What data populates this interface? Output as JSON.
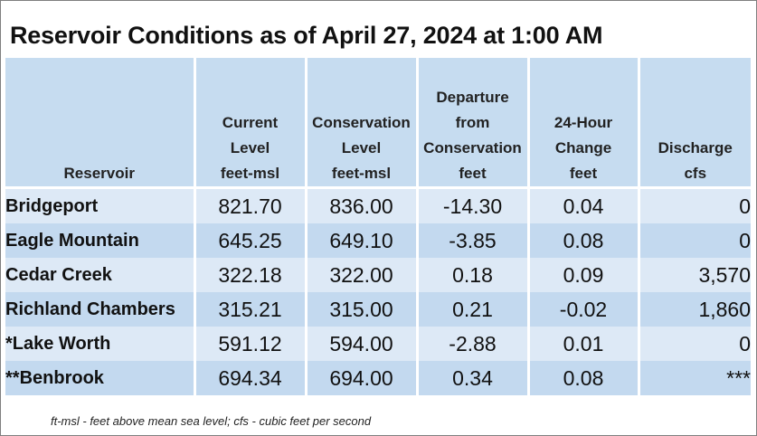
{
  "title": "Reservoir Conditions as of April 27, 2024 at 1:00 AM",
  "columns": [
    {
      "lines": [
        "Reservoir"
      ]
    },
    {
      "lines": [
        "Current",
        "Level",
        "feet-msl"
      ]
    },
    {
      "lines": [
        "Conservation",
        "Level",
        "feet-msl"
      ]
    },
    {
      "lines": [
        "Departure",
        "from",
        "Conservation",
        "feet"
      ]
    },
    {
      "lines": [
        "24-Hour",
        "Change",
        "feet"
      ]
    },
    {
      "lines": [
        "Discharge",
        "cfs"
      ]
    }
  ],
  "rows": [
    {
      "name": "Bridgeport",
      "current": "821.70",
      "conservation": "836.00",
      "departure": "-14.30",
      "change": "0.04",
      "discharge": "0"
    },
    {
      "name": "Eagle Mountain",
      "current": "645.25",
      "conservation": "649.10",
      "departure": "-3.85",
      "change": "0.08",
      "discharge": "0"
    },
    {
      "name": "Cedar Creek",
      "current": "322.18",
      "conservation": "322.00",
      "departure": "0.18",
      "change": "0.09",
      "discharge": "3,570"
    },
    {
      "name": "Richland Chambers",
      "current": "315.21",
      "conservation": "315.00",
      "departure": "0.21",
      "change": "-0.02",
      "discharge": "1,860"
    },
    {
      "name": "*Lake Worth",
      "current": "591.12",
      "conservation": "594.00",
      "departure": "-2.88",
      "change": "0.01",
      "discharge": "0"
    },
    {
      "name": "**Benbrook",
      "current": "694.34",
      "conservation": "694.00",
      "departure": "0.34",
      "change": "0.08",
      "discharge": "***"
    }
  ],
  "footnote": "ft-msl - feet above mean sea level; cfs - cubic feet per second",
  "colors": {
    "header_bg": "#c6dcf0",
    "row_light": "#dde9f6",
    "row_dark": "#c3d9ef"
  }
}
